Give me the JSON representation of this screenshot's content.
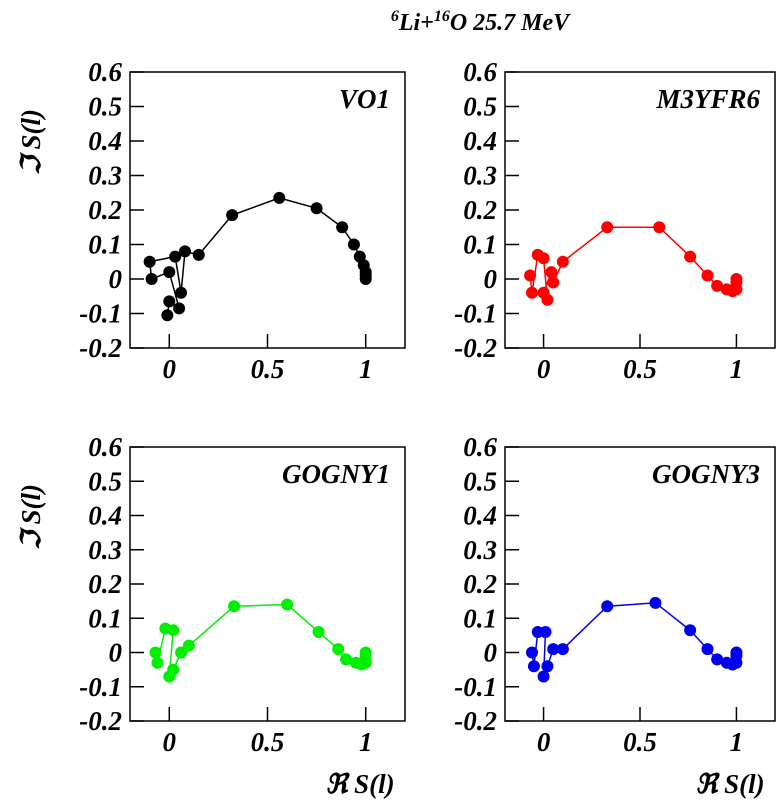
{
  "title": [
    "6",
    "Li+",
    "16",
    "O 25.7 MeV"
  ],
  "chart_data": [
    {
      "type": "line",
      "ylabel": "ℑ S(l)",
      "x": [
        -0.01,
        0.0,
        0.05,
        0.0,
        -0.09,
        -0.1,
        0.03,
        0.06,
        0.08,
        0.15,
        0.32,
        0.56,
        0.75,
        0.88,
        0.94,
        0.97,
        0.99,
        1.0,
        1.0,
        1.0
      ],
      "series": [
        {
          "name": "VO1",
          "color": "#000000",
          "values": [
            -0.105,
            -0.065,
            -0.085,
            0.02,
            0.0,
            0.05,
            0.065,
            -0.04,
            0.08,
            0.07,
            0.185,
            0.235,
            0.205,
            0.15,
            0.1,
            0.065,
            0.04,
            0.02,
            0.01,
            0.0
          ]
        }
      ],
      "xlim": [
        -0.2,
        1.2
      ],
      "ylim": [
        -0.2,
        0.6
      ],
      "xticks": [
        0,
        0.5,
        1
      ],
      "yticks": [
        0.6,
        0.5,
        0.4,
        0.3,
        0.2,
        0.1,
        0,
        -0.1,
        -0.2
      ]
    },
    {
      "type": "line",
      "x": [
        -0.07,
        -0.06,
        -0.03,
        0.0,
        0.02,
        0.0,
        0.04,
        0.05,
        0.1,
        0.33,
        0.6,
        0.76,
        0.85,
        0.9,
        0.95,
        0.98,
        1.0,
        1.0,
        1.0
      ],
      "series": [
        {
          "name": "M3YFR6",
          "color": "#ff0000",
          "values": [
            0.01,
            -0.04,
            0.07,
            0.06,
            -0.06,
            -0.04,
            0.02,
            -0.01,
            0.05,
            0.15,
            0.15,
            0.065,
            0.01,
            -0.02,
            -0.03,
            -0.035,
            -0.03,
            -0.01,
            0.0
          ]
        }
      ],
      "xlim": [
        -0.2,
        1.2
      ],
      "ylim": [
        -0.2,
        0.6
      ],
      "xticks": [
        0,
        0.5,
        1
      ],
      "yticks": [
        0.6,
        0.5,
        0.4,
        0.3,
        0.2,
        0.1,
        0,
        -0.1,
        -0.2
      ]
    },
    {
      "type": "line",
      "ylabel": "ℑ S(l)",
      "xlabel": "ℜ S(l)",
      "x": [
        -0.07,
        -0.06,
        -0.02,
        0.02,
        0.0,
        0.02,
        0.06,
        0.1,
        0.33,
        0.6,
        0.76,
        0.86,
        0.9,
        0.95,
        0.98,
        1.0,
        1.0,
        1.0
      ],
      "series": [
        {
          "name": "GOGNY1",
          "color": "#00ee00",
          "values": [
            0.0,
            -0.03,
            0.07,
            0.065,
            -0.07,
            -0.05,
            0.0,
            0.02,
            0.135,
            0.14,
            0.06,
            0.01,
            -0.02,
            -0.03,
            -0.035,
            -0.03,
            -0.01,
            0.0
          ]
        }
      ],
      "xlim": [
        -0.2,
        1.2
      ],
      "ylim": [
        -0.2,
        0.6
      ],
      "xticks": [
        0,
        0.5,
        1
      ],
      "yticks": [
        0.6,
        0.5,
        0.4,
        0.3,
        0.2,
        0.1,
        0,
        -0.1,
        -0.2
      ]
    },
    {
      "type": "line",
      "xlabel": "ℜ S(l)",
      "x": [
        -0.06,
        -0.05,
        -0.03,
        0.01,
        0.0,
        0.02,
        0.05,
        0.1,
        0.33,
        0.58,
        0.76,
        0.85,
        0.9,
        0.95,
        0.98,
        1.0,
        1.0,
        1.0
      ],
      "series": [
        {
          "name": "GOGNY3",
          "color": "#0000ee",
          "values": [
            0.0,
            -0.04,
            0.06,
            0.06,
            -0.07,
            -0.04,
            0.01,
            0.01,
            0.135,
            0.145,
            0.065,
            0.01,
            -0.02,
            -0.03,
            -0.035,
            -0.03,
            -0.01,
            0.0
          ]
        }
      ],
      "xlim": [
        -0.2,
        1.2
      ],
      "ylim": [
        -0.2,
        0.6
      ],
      "xticks": [
        0,
        0.5,
        1
      ],
      "yticks": [
        0.6,
        0.5,
        0.4,
        0.3,
        0.2,
        0.1,
        0,
        -0.1,
        -0.2
      ]
    }
  ]
}
